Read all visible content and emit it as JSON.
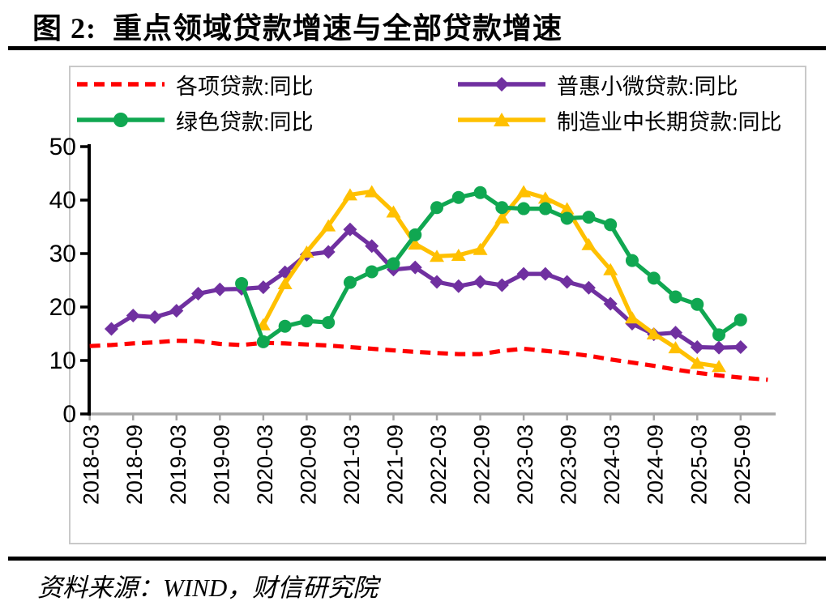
{
  "title": "图 2:  重点领域贷款增速与全部贷款增速",
  "source_note": "资料来源：WIND，财信研究院",
  "axis_color": "#a6a6a6",
  "chart_data": {
    "type": "line",
    "title": "图 2: 重点领域贷款增速与全部贷款增速",
    "xlabel": "",
    "ylabel": "",
    "ylim": [
      0,
      50
    ],
    "y_ticks": [
      0,
      10,
      20,
      30,
      40,
      50
    ],
    "grid": false,
    "legend_position": "top",
    "x_tick_labels": [
      "2018-03",
      "2018-09",
      "2019-03",
      "2019-09",
      "2020-03",
      "2020-09",
      "2021-03",
      "2021-09",
      "2022-03",
      "2022-09",
      "2023-03",
      "2023-09",
      "2024-03",
      "2024-09",
      "2025-03",
      "2025-09"
    ],
    "categories": [
      "2018-03",
      "2018-06",
      "2018-09",
      "2018-12",
      "2019-03",
      "2019-06",
      "2019-09",
      "2019-12",
      "2020-03",
      "2020-06",
      "2020-09",
      "2020-12",
      "2021-03",
      "2021-06",
      "2021-09",
      "2021-12",
      "2022-03",
      "2022-06",
      "2022-09",
      "2022-12",
      "2023-03",
      "2023-06",
      "2023-09",
      "2023-12",
      "2024-03",
      "2024-06",
      "2024-09",
      "2024-12",
      "2025-03",
      "2025-06",
      "2025-09"
    ],
    "series": [
      {
        "name": "各项贷款:同比",
        "color": "#FF0000",
        "line_style": "dashed",
        "marker": "none",
        "values": [
          12.7,
          12.9,
          13.2,
          13.4,
          13.7,
          13.6,
          13.1,
          12.9,
          13.3,
          13.2,
          13.0,
          12.8,
          12.5,
          12.2,
          11.9,
          11.6,
          11.4,
          11.2,
          11.2,
          11.8,
          12.2,
          11.8,
          11.4,
          10.9,
          10.2,
          9.6,
          9.0,
          8.3,
          7.7,
          7.2,
          6.8
        ],
        "tail_extension": {
          "quarters": 1.25,
          "value": 6.4
        }
      },
      {
        "name": "普惠小微贷款:同比",
        "color": "#7030A0",
        "line_style": "solid",
        "marker": "diamond",
        "values": [
          null,
          15.9,
          18.4,
          18.1,
          19.3,
          22.5,
          23.3,
          23.4,
          23.7,
          26.5,
          29.8,
          30.3,
          34.5,
          31.4,
          27.0,
          27.4,
          24.7,
          23.9,
          24.7,
          24.1,
          26.2,
          26.2,
          24.7,
          23.6,
          20.6,
          16.9,
          14.9,
          15.2,
          12.5,
          12.4,
          12.5
        ]
      },
      {
        "name": "制造业中长期贷款:同比",
        "color": "#FFC000",
        "line_style": "solid",
        "marker": "triangle",
        "values": [
          null,
          null,
          null,
          null,
          null,
          null,
          null,
          null,
          16.7,
          24.4,
          30.3,
          35.2,
          41.0,
          41.6,
          37.8,
          31.8,
          29.5,
          29.7,
          30.8,
          36.7,
          41.6,
          40.4,
          38.4,
          31.7,
          27.0,
          18.0,
          15.0,
          12.4,
          9.5,
          8.9,
          null
        ]
      },
      {
        "name": "绿色贷款:同比",
        "color": "#10A751",
        "line_style": "solid",
        "marker": "circle",
        "values": [
          null,
          null,
          null,
          null,
          null,
          null,
          null,
          24.4,
          13.5,
          16.4,
          17.4,
          17.1,
          24.6,
          26.6,
          28.1,
          33.5,
          38.6,
          40.5,
          41.4,
          38.6,
          38.4,
          38.4,
          36.6,
          36.8,
          35.4,
          28.7,
          25.4,
          21.9,
          20.5,
          14.8,
          17.6
        ]
      }
    ],
    "legend_order_row_major": [
      0,
      1,
      3,
      2
    ]
  }
}
